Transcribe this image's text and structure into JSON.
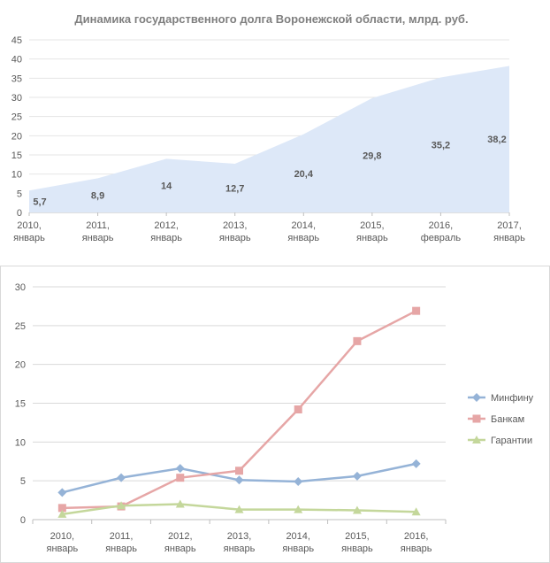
{
  "chart_data": [
    {
      "type": "area",
      "title": "Динамика государственного долга Воронежской области, млрд. руб.",
      "categories": [
        [
          "2010,",
          "январь"
        ],
        [
          "2011,",
          "январь"
        ],
        [
          "2012,",
          "январь"
        ],
        [
          "2013,",
          "январь"
        ],
        [
          "2014,",
          "январь"
        ],
        [
          "2015,",
          "январь"
        ],
        [
          "2016,",
          "февраль"
        ],
        [
          "2017,",
          "январь"
        ]
      ],
      "values": [
        5.7,
        8.9,
        14,
        12.7,
        20.4,
        29.8,
        35.2,
        38.2
      ],
      "data_labels": [
        "5,7",
        "8,9",
        "14",
        "12,7",
        "20,4",
        "29,8",
        "35,2",
        "38,2"
      ],
      "ylim": [
        0,
        45
      ],
      "yticks": [
        "0",
        "5",
        "10",
        "15",
        "20",
        "25",
        "30",
        "35",
        "40",
        "45"
      ],
      "grid": true,
      "color": "#dde8f8"
    },
    {
      "type": "line",
      "categories": [
        [
          "2010,",
          "январь"
        ],
        [
          "2011,",
          "январь"
        ],
        [
          "2012,",
          "январь"
        ],
        [
          "2013,",
          "январь"
        ],
        [
          "2014,",
          "январь"
        ],
        [
          "2015,",
          "январь"
        ],
        [
          "2016,",
          "январь"
        ]
      ],
      "series": [
        {
          "name": "Минфину",
          "values": [
            3.5,
            5.4,
            6.6,
            5.1,
            4.9,
            5.6,
            7.2
          ],
          "color": "#95b3d7",
          "marker": "diamond"
        },
        {
          "name": "Банкам",
          "values": [
            1.5,
            1.7,
            5.4,
            6.3,
            14.2,
            23.0,
            26.9
          ],
          "color": "#e6a6a6",
          "marker": "square"
        },
        {
          "name": "Гарантии",
          "values": [
            0.7,
            1.8,
            2.0,
            1.3,
            1.3,
            1.2,
            1.0
          ],
          "color": "#c4d79b",
          "marker": "triangle"
        }
      ],
      "ylim": [
        0,
        30
      ],
      "yticks": [
        "0",
        "5",
        "10",
        "15",
        "20",
        "25",
        "30"
      ],
      "grid": true,
      "legend": "right"
    }
  ]
}
